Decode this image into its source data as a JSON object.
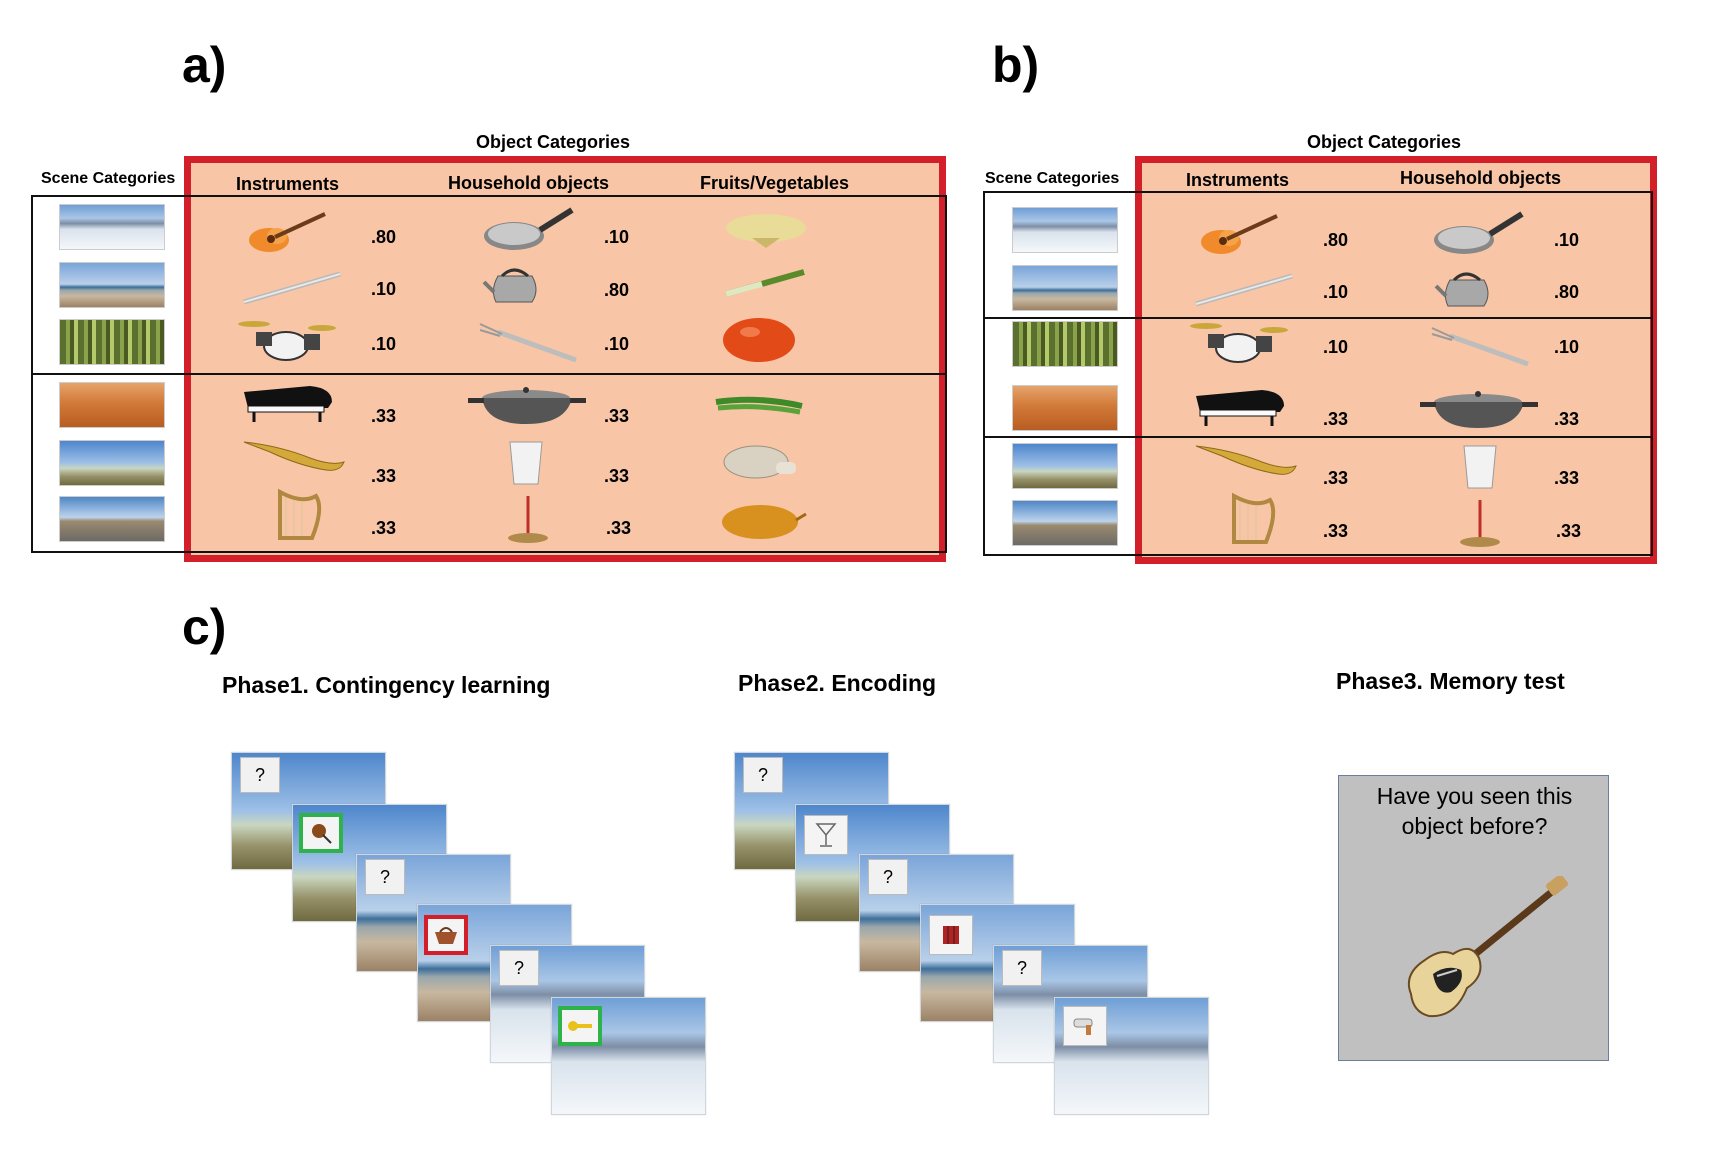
{
  "panels": {
    "a": {
      "letter": "a)",
      "object_categories_title": "Object Categories",
      "scene_categories_title": "Scene Categories",
      "columns": [
        "Instruments",
        "Household objects",
        "Fruits/Vegetables"
      ],
      "scenes": [
        "snow-mountain",
        "beach",
        "forest",
        "desert",
        "savanna",
        "road"
      ],
      "rows": [
        {
          "items": [
            "guitar",
            "pan",
            "cauliflower"
          ],
          "probs": [
            ".80",
            ".10",
            ""
          ]
        },
        {
          "items": [
            "flute",
            "kettle",
            "leek"
          ],
          "probs": [
            ".10",
            ".80",
            ""
          ]
        },
        {
          "items": [
            "drums",
            "fork",
            "tomato"
          ],
          "probs": [
            ".10",
            ".10",
            ""
          ]
        },
        {
          "items": [
            "piano",
            "pot",
            "green-beans"
          ],
          "probs": [
            ".33",
            ".33",
            ""
          ]
        },
        {
          "items": [
            "saxophone",
            "glass",
            "mushroom"
          ],
          "probs": [
            ".33",
            ".33",
            ""
          ]
        },
        {
          "items": [
            "harp",
            "incense",
            "onion"
          ],
          "probs": [
            ".33",
            ".33",
            ""
          ]
        }
      ]
    },
    "b": {
      "letter": "b)",
      "object_categories_title": "Object Categories",
      "scene_categories_title": "Scene Categories",
      "columns": [
        "Instruments",
        "Household objects"
      ],
      "scenes": [
        "snow-mountain",
        "beach",
        "forest",
        "desert",
        "savanna",
        "road"
      ],
      "rows": [
        {
          "items": [
            "guitar",
            "pan"
          ],
          "probs": [
            ".80",
            ".10"
          ]
        },
        {
          "items": [
            "flute",
            "kettle"
          ],
          "probs": [
            ".10",
            ".80"
          ]
        },
        {
          "items": [
            "drums",
            "fork"
          ],
          "probs": [
            ".10",
            ".10"
          ]
        },
        {
          "items": [
            "piano",
            "pot"
          ],
          "probs": [
            ".33",
            ".33"
          ]
        },
        {
          "items": [
            "saxophone",
            "glass"
          ],
          "probs": [
            ".33",
            ".33"
          ]
        },
        {
          "items": [
            "harp",
            "incense"
          ],
          "probs": [
            ".33",
            ".33"
          ]
        }
      ]
    },
    "c": {
      "letter": "c)",
      "phase1": "Phase1. Contingency learning",
      "phase2": "Phase2. Encoding",
      "phase3": "Phase3. Memory test",
      "question_mark": "?",
      "memory_prompt": "Have you seen this object before?",
      "feedback_colors": {
        "correct": "#2db34a",
        "incorrect": "#d21f2a"
      }
    }
  }
}
